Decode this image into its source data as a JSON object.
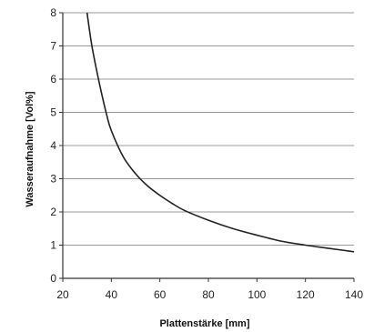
{
  "chart_data": {
    "type": "line",
    "xlabel": "Plattenstärke [mm]",
    "ylabel": "Wasseraufnahme [Vol%]",
    "xlim": [
      20,
      140
    ],
    "ylim": [
      0,
      8
    ],
    "xticks": [
      20,
      40,
      60,
      80,
      100,
      120,
      140
    ],
    "yticks": [
      0,
      1,
      2,
      3,
      4,
      5,
      6,
      7,
      8
    ],
    "grid": "horizontal",
    "legend": "none",
    "line_color": "#222222",
    "series": [
      {
        "x": [
          30,
          32,
          35,
          38,
          40,
          45,
          50,
          55,
          60,
          65,
          70,
          80,
          90,
          100,
          110,
          120,
          130,
          140
        ],
        "values": [
          8.0,
          7.0,
          5.9,
          4.95,
          4.45,
          3.65,
          3.15,
          2.78,
          2.5,
          2.26,
          2.05,
          1.75,
          1.5,
          1.3,
          1.12,
          1.0,
          0.9,
          0.8
        ]
      }
    ]
  }
}
